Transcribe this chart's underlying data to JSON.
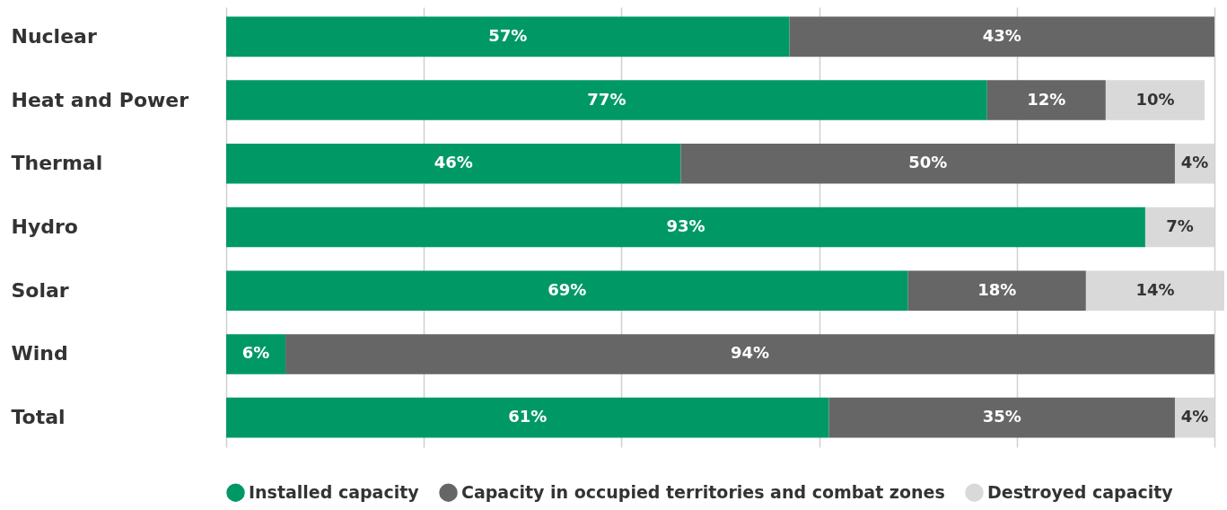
{
  "chart_data": {
    "type": "bar",
    "orientation": "horizontal",
    "stacked": true,
    "categories": [
      "Nuclear",
      "Heat and Power",
      "Thermal",
      "Hydro",
      "Solar",
      "Wind",
      "Total"
    ],
    "series": [
      {
        "name": "Installed capacity",
        "color": "#009966",
        "values": [
          57,
          77,
          46,
          93,
          69,
          6,
          61
        ],
        "value_labels": [
          "57%",
          "77%",
          "46%",
          "93%",
          "69%",
          "6%",
          "61%"
        ]
      },
      {
        "name": "Capacity in occupied territories and combat zones",
        "color": "#666666",
        "values": [
          43,
          12,
          50,
          null,
          18,
          94,
          35
        ],
        "value_labels": [
          "43%",
          "12%",
          "50%",
          null,
          "18%",
          "94%",
          "35%"
        ]
      },
      {
        "name": "Destroyed capacity",
        "color": "#d9d9d9",
        "values": [
          null,
          10,
          4,
          7,
          14,
          null,
          4
        ],
        "value_labels": [
          null,
          "10%",
          "4%",
          "7%",
          "14%",
          null,
          "4%"
        ]
      }
    ],
    "grid": "x",
    "tick_labels": "y",
    "legend": "bottom"
  }
}
